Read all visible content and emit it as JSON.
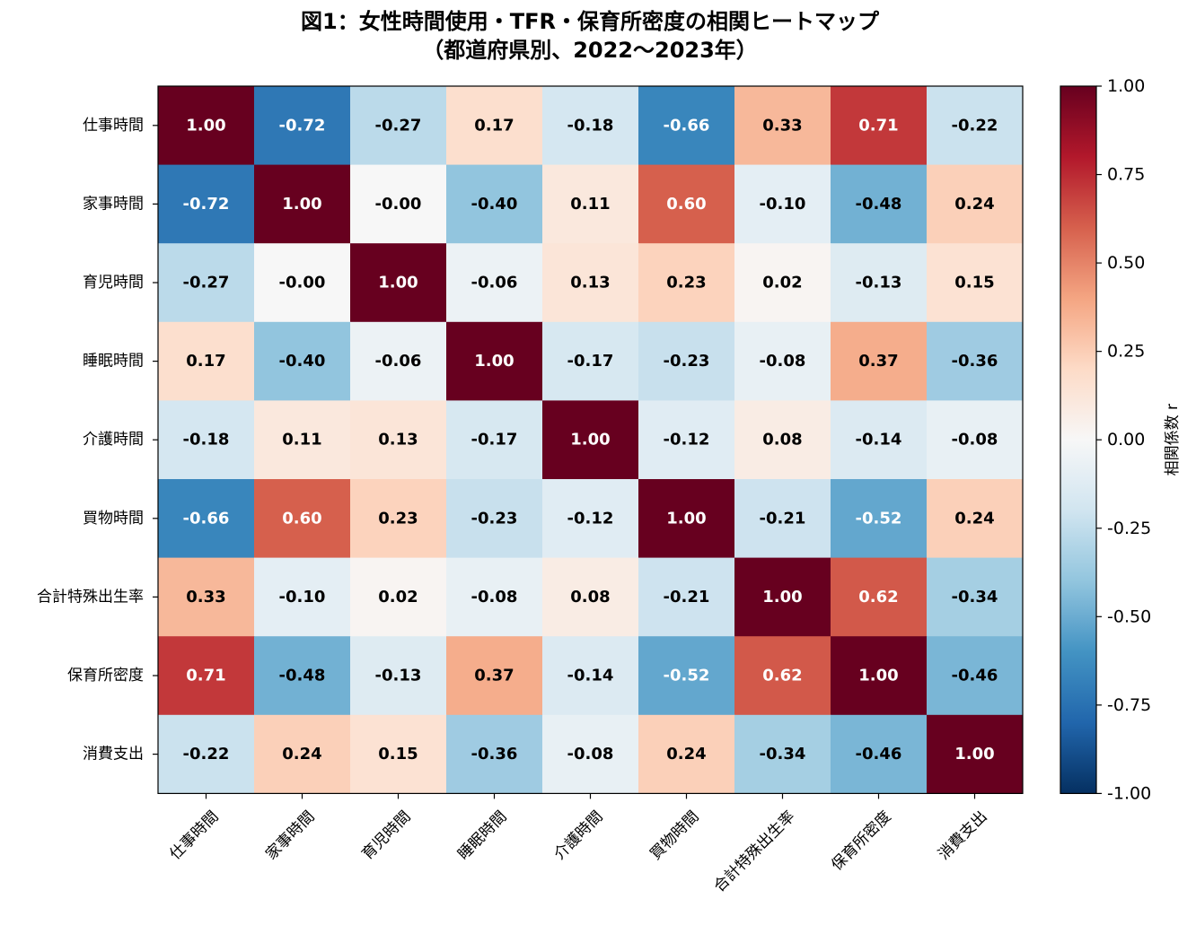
{
  "chart_data": {
    "type": "heatmap",
    "title": "図1：女性時間使用・TFR・保育所密度の相関ヒートマップ",
    "subtitle": "（都道府県別、2022〜2023年）",
    "row_labels": [
      "仕事時間",
      "家事時間",
      "育児時間",
      "睡眠時間",
      "介護時間",
      "買物時間",
      "合計特殊出生率",
      "保育所密度",
      "消費支出"
    ],
    "col_labels": [
      "仕事時間",
      "家事時間",
      "育児時間",
      "睡眠時間",
      "介護時間",
      "買物時間",
      "合計特殊出生率",
      "保育所密度",
      "消費支出"
    ],
    "values": [
      [
        1.0,
        -0.72,
        -0.27,
        0.17,
        -0.18,
        -0.66,
        0.33,
        0.71,
        -0.22
      ],
      [
        -0.72,
        1.0,
        -0.0,
        -0.4,
        0.11,
        0.6,
        -0.1,
        -0.48,
        0.24
      ],
      [
        -0.27,
        -0.0,
        1.0,
        -0.06,
        0.13,
        0.23,
        0.02,
        -0.13,
        0.15
      ],
      [
        0.17,
        -0.4,
        -0.06,
        1.0,
        -0.17,
        -0.23,
        -0.08,
        0.37,
        -0.36
      ],
      [
        -0.18,
        0.11,
        0.13,
        -0.17,
        1.0,
        -0.12,
        0.08,
        -0.14,
        -0.08
      ],
      [
        -0.66,
        0.6,
        0.23,
        -0.23,
        -0.12,
        1.0,
        -0.21,
        -0.52,
        0.24
      ],
      [
        0.33,
        -0.1,
        0.02,
        -0.08,
        0.08,
        -0.21,
        1.0,
        0.62,
        -0.34
      ],
      [
        0.71,
        -0.48,
        -0.13,
        0.37,
        -0.14,
        -0.52,
        0.62,
        1.0,
        -0.46
      ],
      [
        -0.22,
        0.24,
        0.15,
        -0.36,
        -0.08,
        0.24,
        -0.34,
        -0.46,
        1.0
      ]
    ],
    "value_labels": [
      [
        "1.00",
        "-0.72",
        "-0.27",
        "0.17",
        "-0.18",
        "-0.66",
        "0.33",
        "0.71",
        "-0.22"
      ],
      [
        "-0.72",
        "1.00",
        "-0.00",
        "-0.40",
        "0.11",
        "0.60",
        "-0.10",
        "-0.48",
        "0.24"
      ],
      [
        "-0.27",
        "-0.00",
        "1.00",
        "-0.06",
        "0.13",
        "0.23",
        "0.02",
        "-0.13",
        "0.15"
      ],
      [
        "0.17",
        "-0.40",
        "-0.06",
        "1.00",
        "-0.17",
        "-0.23",
        "-0.08",
        "0.37",
        "-0.36"
      ],
      [
        "-0.18",
        "0.11",
        "0.13",
        "-0.17",
        "1.00",
        "-0.12",
        "0.08",
        "-0.14",
        "-0.08"
      ],
      [
        "-0.66",
        "0.60",
        "0.23",
        "-0.23",
        "-0.12",
        "1.00",
        "-0.21",
        "-0.52",
        "0.24"
      ],
      [
        "0.33",
        "-0.10",
        "0.02",
        "-0.08",
        "0.08",
        "-0.21",
        "1.00",
        "0.62",
        "-0.34"
      ],
      [
        "0.71",
        "-0.48",
        "-0.13",
        "0.37",
        "-0.14",
        "-0.52",
        "0.62",
        "1.00",
        "-0.46"
      ],
      [
        "-0.22",
        "0.24",
        "0.15",
        "-0.36",
        "-0.08",
        "0.24",
        "-0.34",
        "-0.46",
        "1.00"
      ]
    ],
    "colormap": "RdBu_r",
    "vmin": -1.0,
    "vmax": 1.0,
    "colorbar": {
      "label": "相関係数 r",
      "ticks": [
        1.0,
        0.75,
        0.5,
        0.25,
        0.0,
        -0.25,
        -0.5,
        -0.75,
        -1.0
      ],
      "tick_labels": [
        "1.00",
        "0.75",
        "0.50",
        "0.25",
        "0.00",
        "-0.25",
        "-0.50",
        "-0.75",
        "-1.00"
      ]
    },
    "light_text_color": "#ffffff",
    "dark_text_color": "#000000"
  }
}
